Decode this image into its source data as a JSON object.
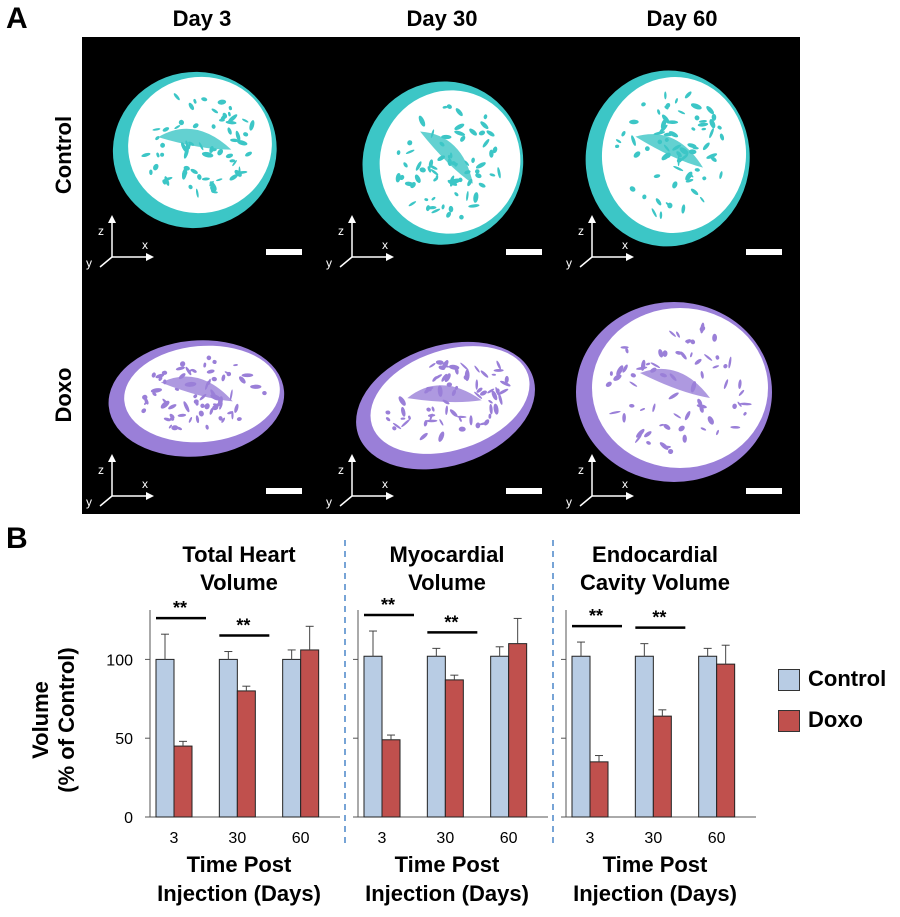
{
  "panel_a": {
    "letter": "A",
    "columns": [
      "Day 3",
      "Day 30",
      "Day 60"
    ],
    "rows": [
      "Control",
      "Doxo"
    ],
    "axes_labels": {
      "z": "z",
      "y": "y",
      "x": "x"
    },
    "colors": {
      "control": "#3cc6c6",
      "doxo": "#9a7fd8",
      "white": "#ffffff"
    }
  },
  "panel_b": {
    "letter": "B",
    "legend": [
      {
        "label": "Control",
        "color": "#b8cce4"
      },
      {
        "label": "Doxo",
        "color": "#c0504d"
      }
    ]
  },
  "chart_data": {
    "type": "bar",
    "ylabel_line1": "Volume",
    "ylabel_line2": "(% of Control)",
    "ylim": [
      0,
      125
    ],
    "yticks": [
      0,
      50,
      100
    ],
    "categories": [
      "3",
      "30",
      "60"
    ],
    "xlabel_line1": "Time Post",
    "xlabel_line2": "Injection (Days)",
    "significance_marker": "**",
    "subplots": [
      {
        "title_line1": "Total Heart",
        "title_line2": "Volume",
        "series": [
          {
            "name": "Control",
            "values": [
              100,
              100,
              100
            ],
            "errors": [
              16,
              5,
              6
            ]
          },
          {
            "name": "Doxo",
            "values": [
              45,
              80,
              106
            ],
            "errors": [
              3,
              3,
              15
            ]
          }
        ],
        "significant": [
          true,
          true,
          false
        ]
      },
      {
        "title_line1": "Myocardial",
        "title_line2": "Volume",
        "series": [
          {
            "name": "Control",
            "values": [
              102,
              102,
              102
            ],
            "errors": [
              16,
              5,
              6
            ]
          },
          {
            "name": "Doxo",
            "values": [
              49,
              87,
              110
            ],
            "errors": [
              3,
              3,
              16
            ]
          }
        ],
        "significant": [
          true,
          true,
          false
        ]
      },
      {
        "title_line1": "Endocardial",
        "title_line2": "Cavity Volume",
        "series": [
          {
            "name": "Control",
            "values": [
              102,
              102,
              102
            ],
            "errors": [
              9,
              8,
              5
            ]
          },
          {
            "name": "Doxo",
            "values": [
              35,
              64,
              97
            ],
            "errors": [
              4,
              4,
              12
            ]
          }
        ],
        "significant": [
          true,
          true,
          false
        ]
      }
    ]
  }
}
